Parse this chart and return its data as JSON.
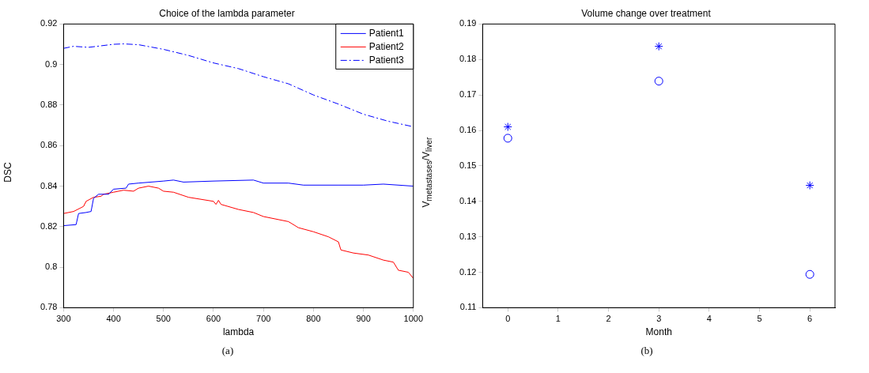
{
  "chart_data": [
    {
      "type": "line",
      "title": "Choice of the lambda parameter",
      "xlabel": "lambda",
      "ylabel": "DSC",
      "xlim": [
        300,
        1000
      ],
      "xticks": [
        300,
        400,
        500,
        600,
        700,
        800,
        900,
        1000
      ],
      "ylim": [
        0.78,
        0.92
      ],
      "yticks": [
        0.78,
        0.8,
        0.82,
        0.84,
        0.86,
        0.88,
        0.9,
        0.92
      ],
      "grid": false,
      "legend": "top right",
      "marker": "none",
      "annotations": [
        "(a)"
      ],
      "series": [
        {
          "name": "Patient1",
          "color": "#0000ff",
          "line_style": "solid",
          "x": [
            300,
            325,
            330,
            345,
            355,
            360,
            370,
            390,
            400,
            425,
            430,
            450,
            500,
            520,
            540,
            600,
            680,
            700,
            750,
            780,
            850,
            900,
            940,
            1000
          ],
          "values": [
            0.8205,
            0.821,
            0.8265,
            0.827,
            0.8275,
            0.834,
            0.836,
            0.836,
            0.8385,
            0.839,
            0.841,
            0.8415,
            0.8425,
            0.843,
            0.842,
            0.8425,
            0.843,
            0.8415,
            0.8415,
            0.8405,
            0.8405,
            0.8405,
            0.841,
            0.84
          ]
        },
        {
          "name": "Patient2",
          "color": "#ff0000",
          "line_style": "solid",
          "x": [
            300,
            320,
            340,
            345,
            360,
            375,
            380,
            400,
            420,
            440,
            450,
            470,
            490,
            500,
            520,
            550,
            600,
            605,
            610,
            615,
            650,
            680,
            700,
            750,
            770,
            800,
            830,
            850,
            855,
            880,
            910,
            940,
            960,
            970,
            990,
            1000
          ],
          "values": [
            0.8265,
            0.8275,
            0.83,
            0.8325,
            0.8345,
            0.835,
            0.836,
            0.837,
            0.838,
            0.8375,
            0.839,
            0.84,
            0.839,
            0.8375,
            0.837,
            0.8345,
            0.8325,
            0.831,
            0.833,
            0.831,
            0.8285,
            0.827,
            0.825,
            0.8225,
            0.8195,
            0.8175,
            0.815,
            0.8125,
            0.8085,
            0.807,
            0.806,
            0.8035,
            0.8025,
            0.7985,
            0.7975,
            0.7945
          ]
        },
        {
          "name": "Patient3",
          "color": "#0000ff",
          "line_style": "dashed",
          "x": [
            300,
            320,
            350,
            400,
            420,
            450,
            500,
            550,
            600,
            650,
            700,
            750,
            800,
            850,
            900,
            950,
            1000
          ],
          "values": [
            0.908,
            0.909,
            0.9085,
            0.91,
            0.9102,
            0.9098,
            0.9075,
            0.9045,
            0.9008,
            0.898,
            0.894,
            0.8905,
            0.885,
            0.8805,
            0.8755,
            0.872,
            0.8693
          ]
        }
      ]
    },
    {
      "type": "scatter",
      "title": "Volume change over treatment",
      "xlabel": "Month",
      "ylabel": "V$_{metastases}$/V$_{liver}$",
      "xlim": [
        -0.5,
        6.5
      ],
      "xticks": [
        0,
        1,
        2,
        3,
        4,
        5,
        6
      ],
      "ylim": [
        0.11,
        0.19
      ],
      "yticks": [
        0.11,
        0.12,
        0.13,
        0.14,
        0.15,
        0.16,
        0.17,
        0.18,
        0.19
      ],
      "grid": false,
      "annotations": [
        "(b)"
      ],
      "series": [
        {
          "color": "#0000ff",
          "marker": "cross",
          "x": [
            0,
            3,
            6
          ],
          "values": [
            0.161,
            0.1837,
            0.1445
          ]
        },
        {
          "color": "#0000ff",
          "marker": "circle",
          "x": [
            0,
            3,
            6
          ],
          "values": [
            0.1578,
            0.1739,
            0.1194
          ]
        }
      ]
    }
  ]
}
